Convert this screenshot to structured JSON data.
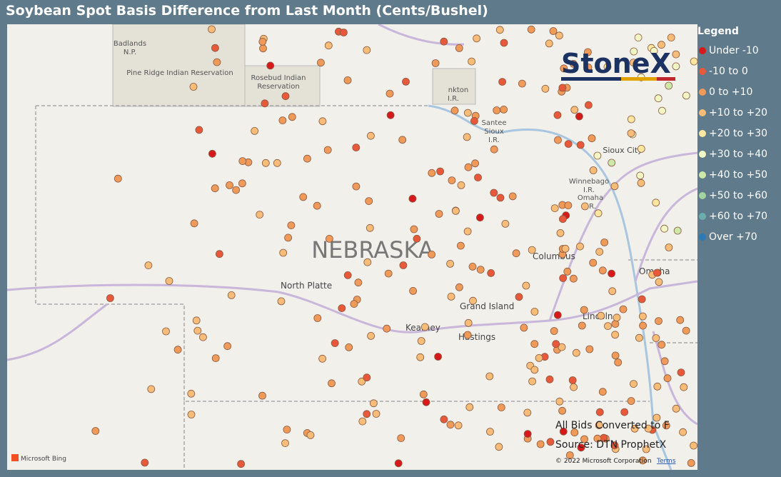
{
  "title": "Soybean Spot Basis Difference from Last Month (Cents/Bushel)",
  "legend": {
    "title": "Legend",
    "items": [
      {
        "label": "Under -10",
        "color": "#d7191c"
      },
      {
        "label": "-10 to 0",
        "color": "#e8583a"
      },
      {
        "label": "0 to +10",
        "color": "#f09a5a"
      },
      {
        "label": "+10 to +20",
        "color": "#f7bd78"
      },
      {
        "label": "+20 to +30",
        "color": "#fde6a0"
      },
      {
        "label": "+30 to +40",
        "color": "#f2f6c4"
      },
      {
        "label": "+40 to +50",
        "color": "#cde8a8"
      },
      {
        "label": "+50 to +60",
        "color": "#a3d4a0"
      },
      {
        "label": "+60 to +70",
        "color": "#6aafad"
      },
      {
        "label": "Over +70",
        "color": "#2c7bb6"
      }
    ]
  },
  "logo": "StoneX",
  "map": {
    "state": "NEBRASKA",
    "places": [
      "Badlands",
      "N.P.",
      "Pine Ridge Indian Reservation",
      "Rosebud Indian",
      "Reservation",
      "nkton",
      "I.R.",
      "Santee",
      "Sioux",
      "I.R.",
      "Sioux City",
      "Winnebago",
      "I.R.",
      "Omaha",
      "I.R.",
      "North Platte",
      "Columbus",
      "Omaha",
      "Grand Island",
      "Kearney",
      "Hastings",
      "Lincoln"
    ]
  },
  "notes": [
    "All Bids Converted to F",
    "Source: DTN ProphetX"
  ],
  "attribution": {
    "bing": "Microsoft Bing",
    "copyright": "© 2022 Microsoft Corporation",
    "terms": "Terms"
  }
}
